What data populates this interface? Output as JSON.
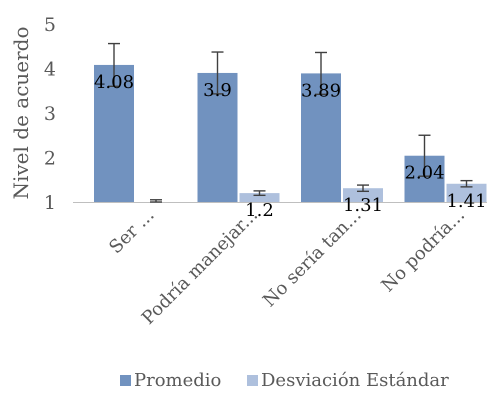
{
  "chart_data": {
    "type": "bar",
    "title": "",
    "xlabel": "",
    "ylabel": "Nivel de acuerdo",
    "ylim": [
      1,
      5
    ],
    "yticks": [
      1,
      2,
      3,
      4,
      5
    ],
    "grid": false,
    "legend_position": "bottom",
    "categories": [
      "Ser ...",
      "Podría manejar...",
      "No sería tan...",
      "No podría..."
    ],
    "series": [
      {
        "name": "Promedio",
        "color": "#7192bf",
        "values": [
          4.08,
          3.9,
          3.89,
          2.04
        ],
        "data_labels": [
          "4.08",
          "3.9",
          "3.89",
          "2.04"
        ],
        "error": [
          0.48,
          0.47,
          0.47,
          0.46
        ]
      },
      {
        "name": "Desviación Estándar",
        "color": "#aec0dd",
        "values": [
          1.0,
          1.2,
          1.31,
          1.41
        ],
        "data_labels": [
          "",
          "1.2",
          "1.31",
          "1.41"
        ],
        "error": [
          0.05,
          0.05,
          0.07,
          0.07
        ]
      }
    ],
    "colors": {
      "axis": "#bfbfbf",
      "text": "#595959",
      "label": "#000000",
      "errorbar": "#404040"
    }
  }
}
